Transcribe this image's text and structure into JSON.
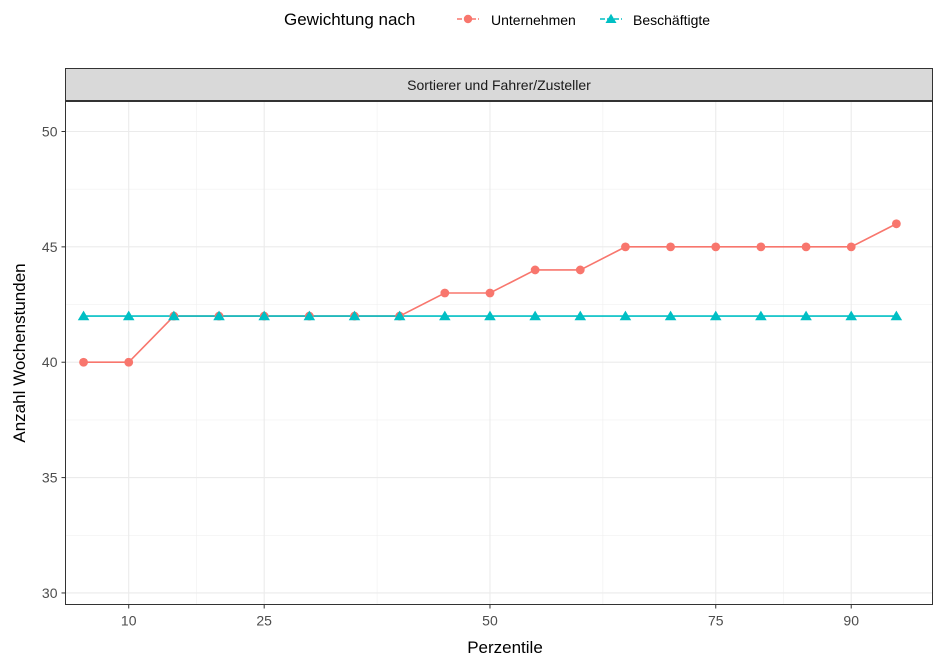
{
  "legend": {
    "title": "Gewichtung nach",
    "items": [
      {
        "label": "Unternehmen",
        "color": "#F8766D",
        "shape": "circle"
      },
      {
        "label": "Beschäftigte",
        "color": "#00BFC4",
        "shape": "triangle"
      }
    ]
  },
  "chart_data": {
    "type": "line",
    "title": "",
    "facet_label": "Sortierer und Fahrer/Zusteller",
    "xlabel": "Perzentile",
    "ylabel": "Anzahl Wochenstunden",
    "x_ticks": [
      10,
      25,
      50,
      75,
      90
    ],
    "y_ticks": [
      30,
      35,
      40,
      45,
      50
    ],
    "xlim": [
      3,
      99
    ],
    "ylim": [
      29.5,
      51.3
    ],
    "grid": true,
    "legend_position": "top",
    "x": [
      5,
      10,
      15,
      20,
      25,
      30,
      35,
      40,
      45,
      50,
      55,
      60,
      65,
      70,
      75,
      80,
      85,
      90,
      95
    ],
    "series": [
      {
        "name": "Unternehmen",
        "values": [
          40,
          40,
          42,
          42,
          42,
          42,
          42,
          42,
          43,
          43,
          44,
          44,
          45,
          45,
          45,
          45,
          45,
          45,
          46
        ]
      },
      {
        "name": "Beschäftigte",
        "values": [
          42,
          42,
          42,
          42,
          42,
          42,
          42,
          42,
          42,
          42,
          42,
          42,
          42,
          42,
          42,
          42,
          42,
          42,
          42
        ]
      }
    ]
  }
}
